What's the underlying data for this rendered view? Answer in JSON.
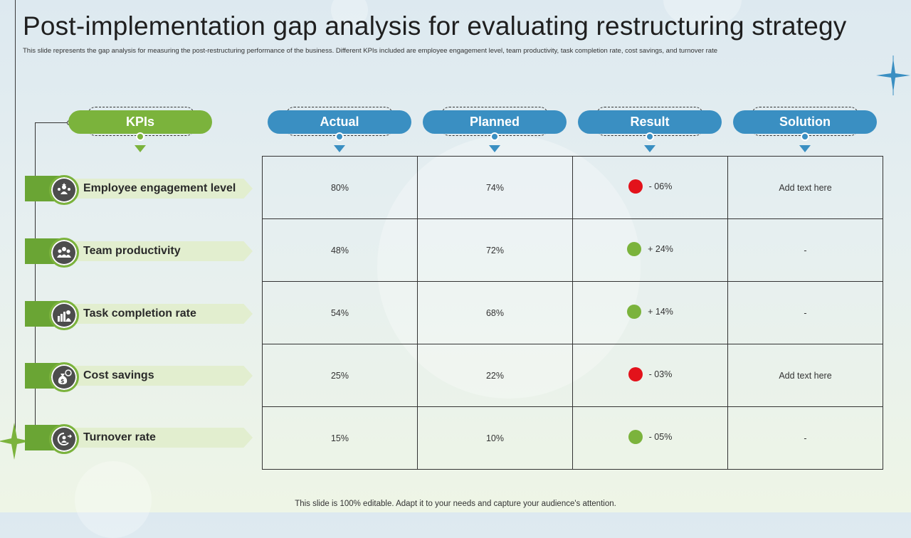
{
  "title": "Post-implementation gap analysis for evaluating restructuring strategy",
  "subtitle": "This slide represents the gap analysis for measuring the post-restructuring performance of the business. Different KPIs included are employee engagement level, team productivity, task completion rate, cost savings, and turnover rate",
  "headers": {
    "kpis": "KPIs",
    "actual": "Actual",
    "planned": "Planned",
    "result": "Result",
    "solution": "Solution"
  },
  "colors": {
    "positive": "#7bb33c",
    "negative": "#e3121b",
    "green_header": "#7bb33c",
    "blue_header": "#3a8fc2"
  },
  "rows": [
    {
      "kpi": "Employee engagement level",
      "icon": "engagement-icon",
      "actual": "80%",
      "planned": "74%",
      "result": "- 06%",
      "status": "negative",
      "solution": "Add text here"
    },
    {
      "kpi": "Team productivity",
      "icon": "team-icon",
      "actual": "48%",
      "planned": "72%",
      "result": "+ 24%",
      "status": "positive",
      "solution": "-"
    },
    {
      "kpi": "Task completion rate",
      "icon": "task-completion-icon",
      "actual": "54%",
      "planned": "68%",
      "result": "+ 14%",
      "status": "positive",
      "solution": "-"
    },
    {
      "kpi": "Cost savings",
      "icon": "money-bag-icon",
      "actual": "25%",
      "planned": "22%",
      "result": "- 03%",
      "status": "negative",
      "solution": "Add text here"
    },
    {
      "kpi": "Turnover rate",
      "icon": "turnover-icon",
      "actual": "15%",
      "planned": "10%",
      "result": "- 05%",
      "status": "positive",
      "solution": "-"
    }
  ],
  "footer": "This slide is 100% editable. Adapt it to your needs and capture your audience's attention."
}
